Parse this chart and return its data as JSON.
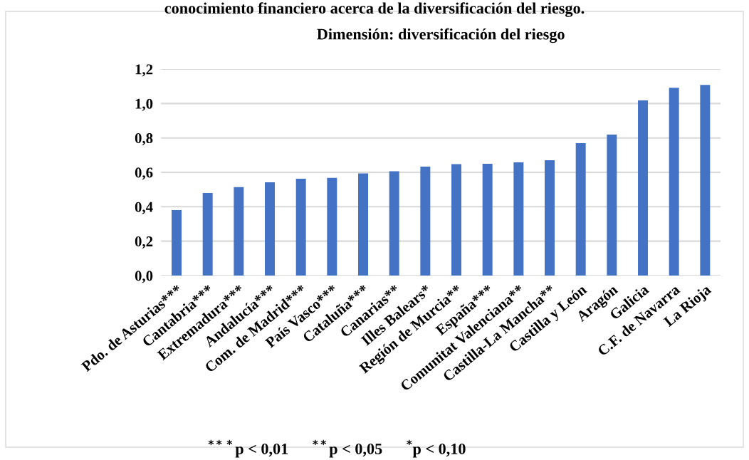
{
  "chart_data": {
    "type": "bar",
    "title": "Dimensión: diversificación del riesgo",
    "categories": [
      "Pdo. de Asturias***",
      "Cantabria***",
      "Extremadura***",
      "Andalucía***",
      "Com. de Madrid***",
      "País Vasco***",
      "Cataluña***",
      "Canarias**",
      "Illes Balears*",
      "Región de Murcia**",
      "España***",
      "Comunitat Valenciana**",
      "Castilla-La Mancha**",
      "Castilla y León",
      "Aragón",
      "Galicia",
      "C.F. de Navarra",
      "La Rioja"
    ],
    "values": [
      0.381,
      0.48,
      0.514,
      0.542,
      0.563,
      0.568,
      0.594,
      0.606,
      0.633,
      0.648,
      0.65,
      0.658,
      0.67,
      0.77,
      0.819,
      1.018,
      1.091,
      1.108
    ],
    "color": "#4472c4",
    "ylim": [
      0,
      1.2
    ],
    "yticks": [
      {
        "value": 0,
        "label": "0,0"
      },
      {
        "value": 0.2,
        "label": "0,2"
      },
      {
        "value": 0.4,
        "label": "0,4"
      },
      {
        "value": 0.6,
        "label": "0,6"
      },
      {
        "value": 0.8,
        "label": "0,8"
      },
      {
        "value": 1.0,
        "label": "1,0"
      },
      {
        "value": 1.2,
        "label": "1,2"
      }
    ],
    "grid": "y",
    "annotations": [
      "conocimiento financiero acerca de la diversificación del riesgo.",
      "$^{***}$p < 0,01      $^{**}$p < 0,05      $^{*}$p < 0,10"
    ]
  }
}
